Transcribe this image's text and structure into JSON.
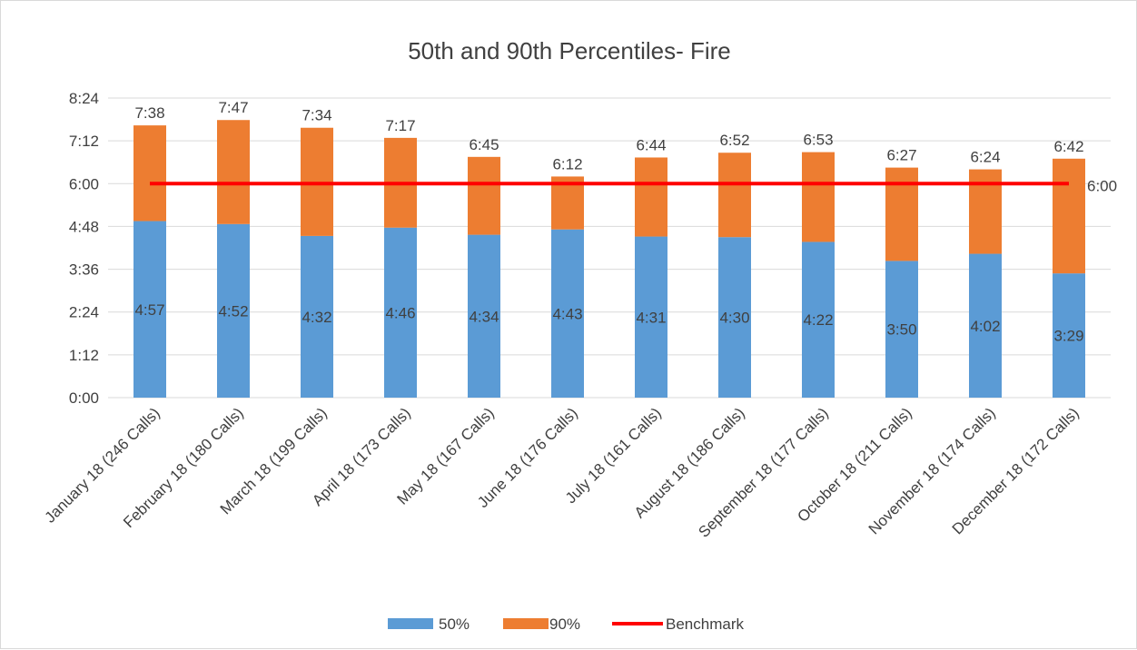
{
  "chart_data": {
    "type": "bar",
    "stacked": true,
    "title": "50th and 90th Percentiles- Fire",
    "xlabel": "",
    "ylabel": "",
    "categories": [
      "January 18 (246 Calls)",
      "February 18 (180 Calls)",
      "March 18 (199 Calls)",
      "April 18 (173 Calls)",
      "May 18 (167 Calls)",
      "June 18 (176 Calls)",
      "July 18 (161 Calls)",
      "August 18 (186 Calls)",
      "September 18 (177 Calls)",
      "October 18 (211 Calls)",
      "November 18 (174 Calls)",
      "December 18 (172 Calls)"
    ],
    "series": [
      {
        "name": "50%",
        "color": "#5b9bd5",
        "values_seconds": [
          297,
          292,
          272,
          286,
          274,
          283,
          271,
          270,
          262,
          230,
          242,
          209
        ],
        "labels": [
          "4:57",
          "4:52",
          "4:32",
          "4:46",
          "4:34",
          "4:43",
          "4:31",
          "4:30",
          "4:22",
          "3:50",
          "4:02",
          "3:29"
        ]
      },
      {
        "name": "90%",
        "color": "#ed7d31",
        "values_seconds": [
          458,
          467,
          454,
          437,
          405,
          372,
          404,
          412,
          413,
          387,
          384,
          402
        ],
        "labels": [
          "7:38",
          "7:47",
          "7:34",
          "7:17",
          "6:45",
          "6:12",
          "6:44",
          "6:52",
          "6:53",
          "6:27",
          "6:24",
          "6:42"
        ]
      },
      {
        "name": "Benchmark",
        "type": "line",
        "color": "#ff0000",
        "value_seconds": 360,
        "label": "6:00"
      }
    ],
    "y_axis": {
      "min_seconds": 0,
      "max_seconds": 504,
      "step_seconds": 72,
      "tick_labels": [
        "0:00",
        "1:12",
        "2:24",
        "3:36",
        "4:48",
        "6:00",
        "7:12",
        "8:24"
      ]
    },
    "grid": true,
    "legend_position": "bottom"
  }
}
